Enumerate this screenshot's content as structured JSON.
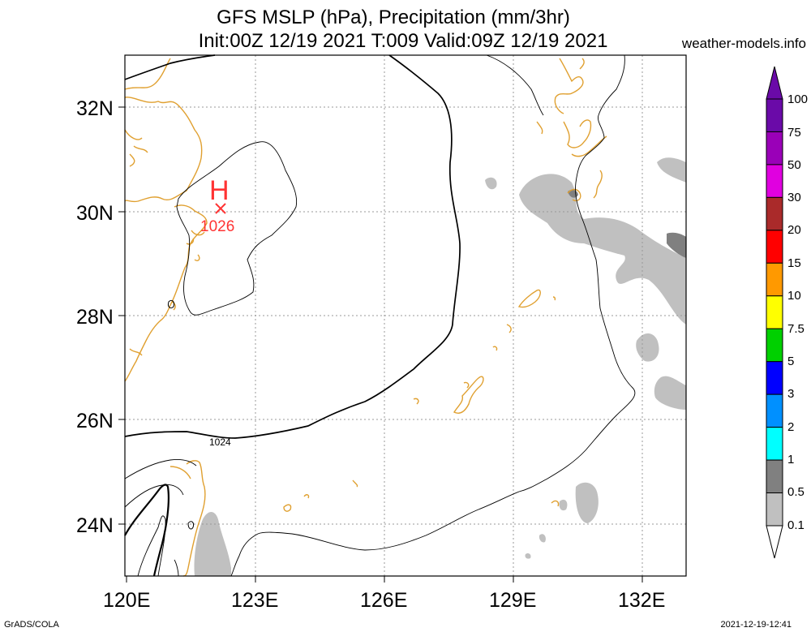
{
  "header": {
    "title_line1": "GFS MSLP (hPa), Precipitation (mm/3hr)",
    "title_line2": "Init:00Z 12/19 2021 T:009 Valid:09Z 12/19 2021",
    "site": "weather-models.info"
  },
  "footer": {
    "software": "GrADS/COLA",
    "timestamp": "2021-12-19-12:41"
  },
  "map": {
    "lat_labels": [
      "32N",
      "30N",
      "28N",
      "26N",
      "24N"
    ],
    "lon_labels": [
      "120E",
      "123E",
      "126E",
      "129E",
      "132E"
    ],
    "high": {
      "symbol": "H",
      "pressure": "1026"
    },
    "isobar_label": "1024",
    "colors": {
      "coastline": "#e0a030",
      "isobar": "#000000",
      "high": "#ff3333",
      "grid": "#999999",
      "precip_light": "#c0c0c0",
      "precip_mid": "#808080"
    }
  },
  "colorbar": {
    "labels": [
      "100",
      "75",
      "50",
      "30",
      "20",
      "15",
      "10",
      "7.5",
      "5",
      "3",
      "2",
      "1",
      "0.5",
      "0.1"
    ],
    "colors": [
      "#6a0aa8",
      "#9a00b8",
      "#e000e0",
      "#aa2a2a",
      "#ff0000",
      "#ff9900",
      "#ffff00",
      "#00d000",
      "#0000ff",
      "#0090ff",
      "#00ffff",
      "#808080",
      "#c0c0c0"
    ]
  }
}
